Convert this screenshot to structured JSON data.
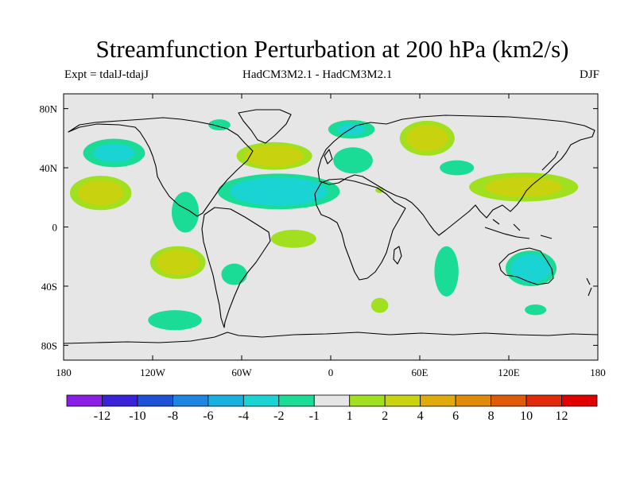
{
  "chart_data": {
    "type": "heatmap",
    "title": "Streamfunction Perturbation at 200 hPa (km2/s)",
    "subtitle_left": "Expt = tdalJ-tdajJ",
    "subtitle_center": "HadCM3M2.1 - HadCM3M2.1",
    "subtitle_right": "DJF",
    "projection": "cylindrical-equidistant",
    "xlim": [
      -180,
      180
    ],
    "ylim": [
      -90,
      90
    ],
    "x_ticks": [
      {
        "value": -180,
        "label": "180"
      },
      {
        "value": -120,
        "label": "120W"
      },
      {
        "value": -60,
        "label": "60W"
      },
      {
        "value": 0,
        "label": "0"
      },
      {
        "value": 60,
        "label": "60E"
      },
      {
        "value": 120,
        "label": "120E"
      },
      {
        "value": 180,
        "label": "180"
      }
    ],
    "y_ticks": [
      {
        "value": 80,
        "label": "80N"
      },
      {
        "value": 40,
        "label": "40N"
      },
      {
        "value": 0,
        "label": "0"
      },
      {
        "value": -40,
        "label": "40S"
      },
      {
        "value": -80,
        "label": "80S"
      }
    ],
    "colorbar": {
      "labels": [
        "-12",
        "-10",
        "-8",
        "-6",
        "-4",
        "-2",
        "-1",
        "1",
        "2",
        "4",
        "6",
        "8",
        "10",
        "12"
      ],
      "colors": [
        "#8a1ee6",
        "#3a22d8",
        "#1e52d6",
        "#1e86e0",
        "#19b0e0",
        "#1ad4d4",
        "#1adc96",
        "#e6e6e6",
        "#a0e01e",
        "#c8d20e",
        "#e0aa0a",
        "#e08a0a",
        "#e05a0a",
        "#e02a0a",
        "#e00000"
      ]
    },
    "anomalies": [
      {
        "name": "north-pacific-negative",
        "lon": -146,
        "lat": 50,
        "rx": 26,
        "ry": 12,
        "value": -2.2
      },
      {
        "name": "subtropical-pacific-positive",
        "lon": -155,
        "lat": 23,
        "rx": 25,
        "ry": 14,
        "value": 2.6
      },
      {
        "name": "central-america-negative",
        "lon": -98,
        "lat": 10,
        "rx": 12,
        "ry": 18,
        "value": -1.8
      },
      {
        "name": "canada-arctic-negative",
        "lon": -75,
        "lat": 69,
        "rx": 10,
        "ry": 5,
        "value": -1.6
      },
      {
        "name": "north-atlantic-positive",
        "lon": -38,
        "lat": 48,
        "rx": 30,
        "ry": 11,
        "value": 3.0
      },
      {
        "name": "subtropical-atlantic-negative",
        "lon": -35,
        "lat": 24,
        "rx": 48,
        "ry": 14,
        "value": -3.2
      },
      {
        "name": "arctic-europe-negative",
        "lon": 14,
        "lat": 66,
        "rx": 20,
        "ry": 8,
        "value": -2.0
      },
      {
        "name": "europe-negative",
        "lon": 15,
        "lat": 45,
        "rx": 18,
        "ry": 12,
        "value": -1.6
      },
      {
        "name": "siberia-positive",
        "lon": 65,
        "lat": 60,
        "rx": 22,
        "ry": 14,
        "value": 2.8
      },
      {
        "name": "central-asia-negative",
        "lon": 85,
        "lat": 40,
        "rx": 16,
        "ry": 7,
        "value": -1.5
      },
      {
        "name": "east-asia-positive",
        "lon": 130,
        "lat": 27,
        "rx": 45,
        "ry": 12,
        "value": 2.4
      },
      {
        "name": "middle-east-positive",
        "lon": 33,
        "lat": 25,
        "rx": 4,
        "ry": 3,
        "value": 1.5
      },
      {
        "name": "southeast-pacific-positive",
        "lon": -103,
        "lat": -24,
        "rx": 22,
        "ry": 13,
        "value": 3.0
      },
      {
        "name": "south-america-negative",
        "lon": -65,
        "lat": -32,
        "rx": 12,
        "ry": 10,
        "value": -1.5
      },
      {
        "name": "south-atlantic-positive",
        "lon": -25,
        "lat": -8,
        "rx": 20,
        "ry": 8,
        "value": 1.8
      },
      {
        "name": "southern-ocean-negative",
        "lon": -105,
        "lat": -63,
        "rx": 24,
        "ry": 9,
        "value": -1.7
      },
      {
        "name": "indian-ocean-negative",
        "lon": 78,
        "lat": -30,
        "rx": 11,
        "ry": 23,
        "value": -1.6
      },
      {
        "name": "australia-negative",
        "lon": 135,
        "lat": -28,
        "rx": 20,
        "ry": 14,
        "value": -3.2
      },
      {
        "name": "south-indian-positive",
        "lon": 33,
        "lat": -53,
        "rx": 8,
        "ry": 7,
        "value": 1.5
      },
      {
        "name": "south-australia-negative",
        "lon": 138,
        "lat": -56,
        "rx": 10,
        "ry": 5,
        "value": -1.5
      }
    ]
  }
}
